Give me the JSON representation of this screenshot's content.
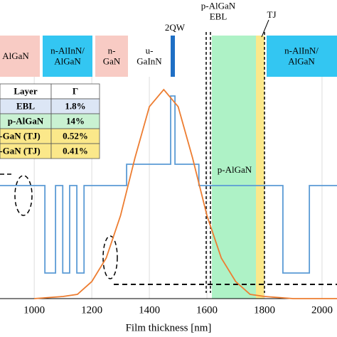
{
  "chart_data": {
    "type": "line",
    "xlabel": "Film thickness [nm]",
    "xlim": [
      881,
      2052
    ],
    "xticks": [
      1000,
      1200,
      1400,
      1600,
      1800,
      2000
    ],
    "ylim": [
      0,
      1
    ],
    "grid": true,
    "series": [
      {
        "color": "#5b9bd5",
        "x": [
          881,
          1037,
          1037,
          1074,
          1074,
          1099,
          1099,
          1123,
          1123,
          1148,
          1148,
          1173,
          1173,
          1321,
          1321,
          1474,
          1474,
          1489,
          1489,
          1572,
          1572,
          1864,
          1864,
          1956,
          1956,
          2052
        ],
        "values": [
          0.53,
          0.53,
          0.12,
          0.12,
          0.53,
          0.53,
          0.12,
          0.12,
          0.53,
          0.53,
          0.12,
          0.12,
          0.53,
          0.53,
          0.63,
          0.63,
          0.95,
          0.95,
          0.63,
          0.63,
          0.53,
          0.53,
          0.12,
          0.12,
          0.53,
          0.53
        ]
      },
      {
        "color": "#ed7d31",
        "x": [
          1000,
          1100,
          1150,
          1200,
          1250,
          1300,
          1350,
          1400,
          1450,
          1500,
          1550,
          1600,
          1650,
          1700,
          1750,
          1800,
          1900,
          2052
        ],
        "values": [
          0.0,
          0.01,
          0.02,
          0.08,
          0.19,
          0.39,
          0.66,
          0.9,
          0.98,
          0.9,
          0.66,
          0.39,
          0.19,
          0.08,
          0.02,
          0.01,
          0.0,
          0.0
        ]
      }
    ],
    "layers": [
      "AlGaN",
      "n-AlInN/\nAlGaN",
      "n-\nGaN",
      "u-\nGaInN",
      "n-AlInN/\nAlGaN"
    ],
    "annotations": {
      "qw": "2QW",
      "ebl": "p-AlGaN\nEBL",
      "tj": "TJ",
      "palgan": "p-AlGaN"
    },
    "table": {
      "header": [
        "Layer",
        "Γ"
      ],
      "rows": [
        [
          "EBL",
          "1.8%"
        ],
        [
          "p-AlGaN",
          "14%"
        ],
        [
          "-GaN (TJ)",
          "0.52%"
        ],
        [
          "-GaN (TJ)",
          "0.41%"
        ]
      ]
    }
  }
}
